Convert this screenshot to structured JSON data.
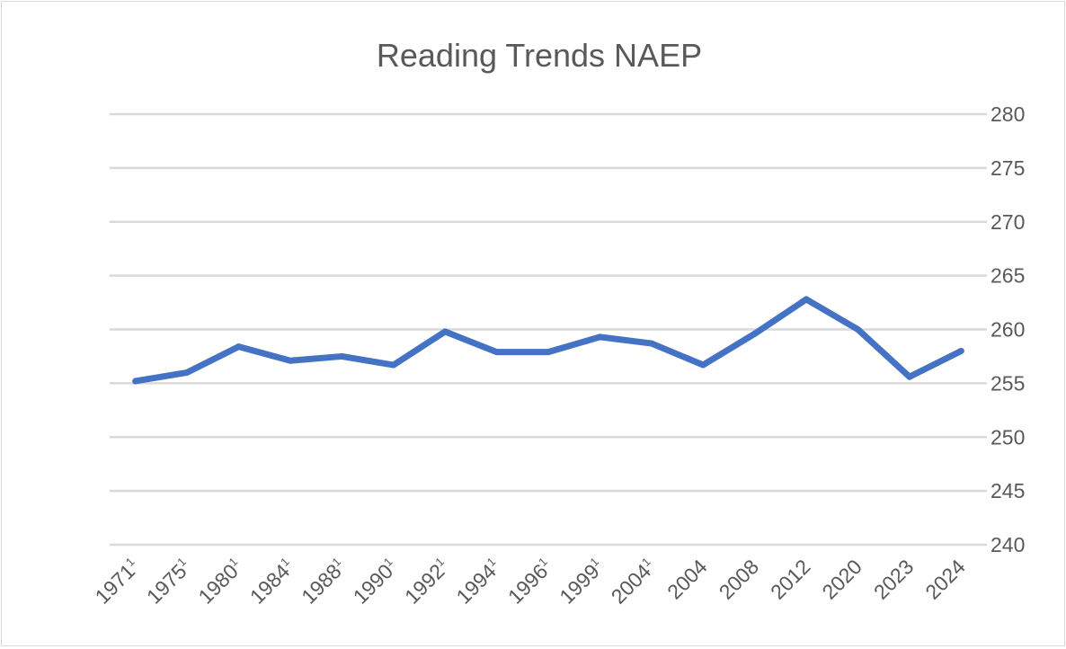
{
  "chart_data": {
    "type": "line",
    "title": "Reading Trends NAEP",
    "xlabel": "",
    "ylabel": "",
    "categories": [
      "1971",
      "1975",
      "1980",
      "1984",
      "1988",
      "1990",
      "1992",
      "1994",
      "1996",
      "1999",
      "2004",
      "2004",
      "2008",
      "2012",
      "2020",
      "2023",
      "2024"
    ],
    "category_notes": [
      "1",
      "1",
      "1",
      "1",
      "1",
      "1",
      "1",
      "1",
      "1",
      "1",
      "1",
      "",
      "",
      "",
      "",
      "",
      ""
    ],
    "series": [
      {
        "values": [
          255.2,
          256.0,
          258.4,
          257.1,
          257.5,
          256.7,
          259.8,
          257.9,
          257.9,
          259.3,
          258.7,
          256.7,
          259.6,
          262.8,
          260.0,
          255.6,
          258.0
        ]
      }
    ],
    "ylim": [
      240,
      280
    ],
    "yticks": [
      240,
      245,
      250,
      255,
      260,
      265,
      270,
      275,
      280
    ],
    "y_axis_side": "right",
    "grid": true,
    "legend": "none",
    "line_color": "#4472c4",
    "grid_color": "#d9d9d9",
    "text_color": "#595959"
  }
}
